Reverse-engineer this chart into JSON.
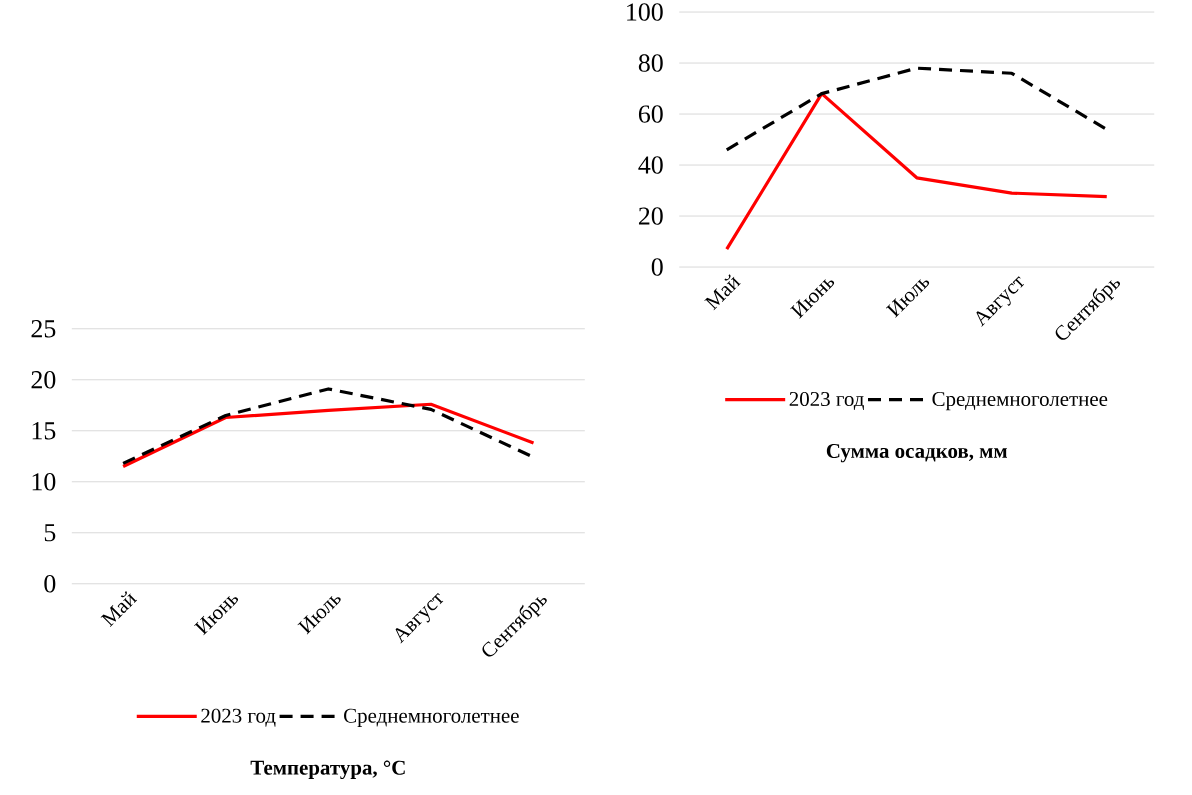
{
  "chart_data": [
    {
      "type": "line",
      "title": "**Температура, °C**",
      "categories": [
        "Май",
        "Июнь",
        "Июль",
        "Август",
        "Сентябрь"
      ],
      "ylim": [
        0,
        25
      ],
      "yticks": [
        0,
        5,
        10,
        15,
        20,
        25
      ],
      "grid": "y",
      "legend": "bottom",
      "series": [
        {
          "name": "2023 год",
          "color": "#ff0000",
          "line_style": "solid",
          "values": [
            11.5,
            16.3,
            17.0,
            17.6,
            13.8
          ]
        },
        {
          "name": "Среднемноголетнее",
          "color": "#000000",
          "line_style": "dashed",
          "values": [
            11.8,
            16.5,
            19.1,
            17.1,
            12.4
          ]
        }
      ]
    },
    {
      "type": "line",
      "title": "**Сумма осадков, мм**",
      "categories": [
        "Май",
        "Июнь",
        "Июль",
        "Август",
        "Сентябрь"
      ],
      "ylim": [
        0,
        100
      ],
      "yticks": [
        0,
        20,
        40,
        60,
        80,
        100
      ],
      "grid": "y",
      "legend": "bottom",
      "series": [
        {
          "name": "2023 год",
          "color": "#ff0000",
          "line_style": "solid",
          "values": [
            7,
            68,
            35,
            29,
            27.6
          ]
        },
        {
          "name": "Среднемноголетнее",
          "color": "#000000",
          "line_style": "dashed",
          "values": [
            46,
            68,
            78,
            76,
            54
          ]
        }
      ]
    }
  ]
}
